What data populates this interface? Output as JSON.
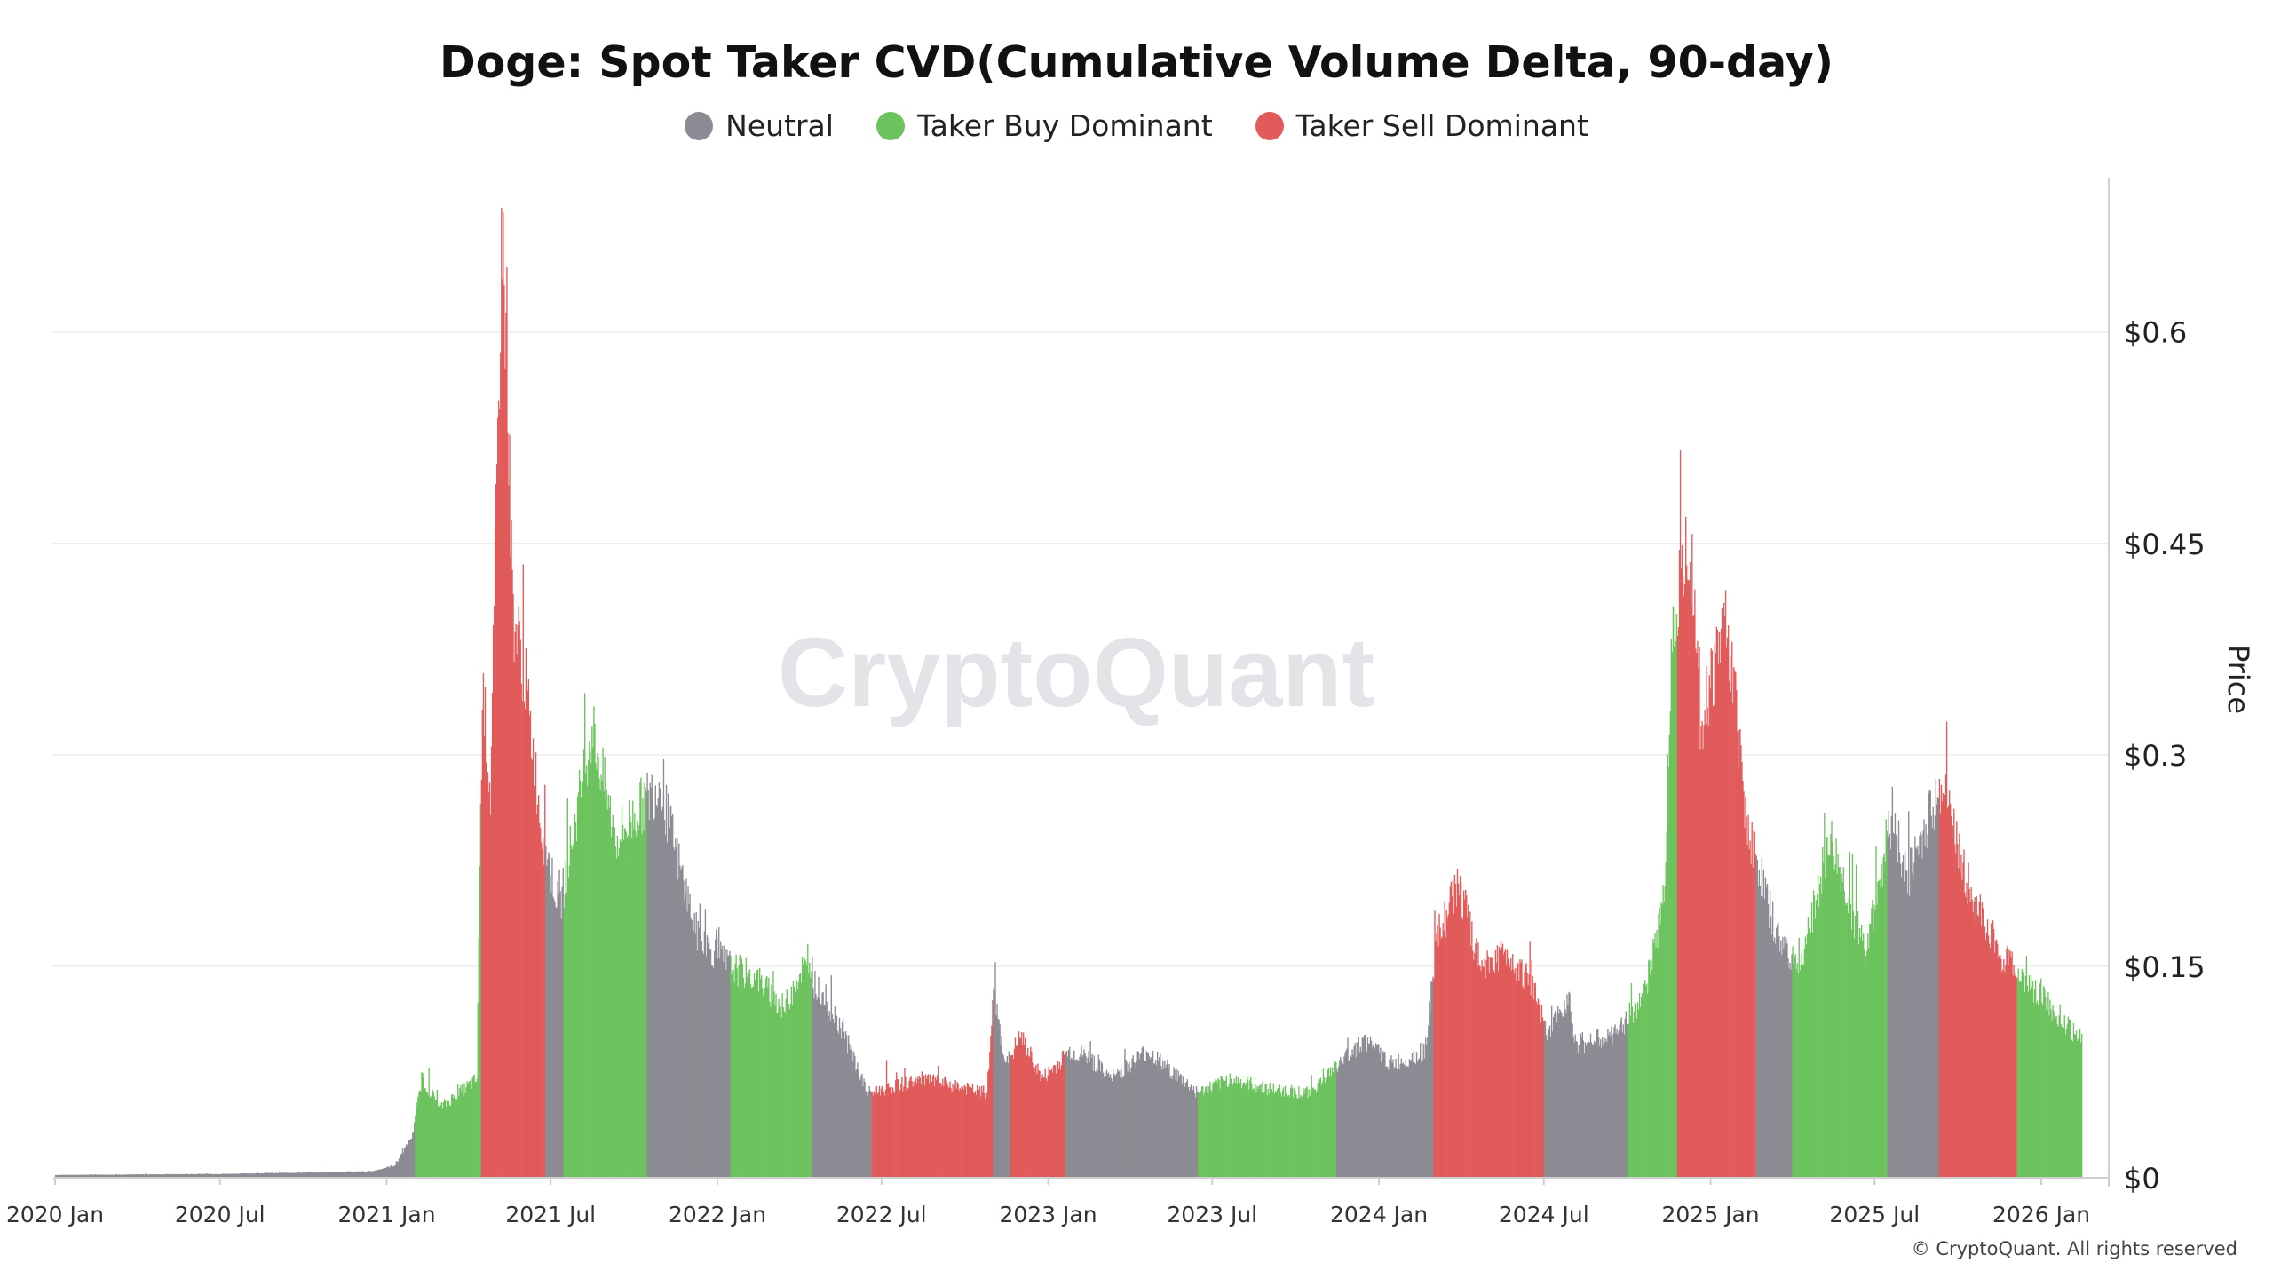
{
  "chart_data": {
    "type": "bar",
    "title": "Doge: Spot Taker CVD(Cumulative Volume Delta, 90-day)",
    "ylabel": "Price",
    "ylim": [
      0,
      0.7
    ],
    "yticks": [
      {
        "value": 0,
        "label": "$0"
      },
      {
        "value": 0.15,
        "label": "$0.15"
      },
      {
        "value": 0.3,
        "label": "$0.3"
      },
      {
        "value": 0.45,
        "label": "$0.45"
      },
      {
        "value": 0.6,
        "label": "$0.6"
      }
    ],
    "x_start": "2020-01-01",
    "x_end": "2026-02-15",
    "xticks": [
      {
        "date": "2020-01-01",
        "label": "2020 Jan"
      },
      {
        "date": "2020-07-01",
        "label": "2020 Jul"
      },
      {
        "date": "2021-01-01",
        "label": "2021 Jan"
      },
      {
        "date": "2021-07-01",
        "label": "2021 Jul"
      },
      {
        "date": "2022-01-01",
        "label": "2022 Jan"
      },
      {
        "date": "2022-07-01",
        "label": "2022 Jul"
      },
      {
        "date": "2023-01-01",
        "label": "2023 Jan"
      },
      {
        "date": "2023-07-01",
        "label": "2023 Jul"
      },
      {
        "date": "2024-01-01",
        "label": "2024 Jan"
      },
      {
        "date": "2024-07-01",
        "label": "2024 Jul"
      },
      {
        "date": "2025-01-01",
        "label": "2025 Jan"
      },
      {
        "date": "2025-07-01",
        "label": "2025 Jul"
      },
      {
        "date": "2026-01-01",
        "label": "2026 Jan"
      }
    ],
    "legend": [
      {
        "name": "Neutral",
        "color": "#8c8b93"
      },
      {
        "name": "Taker Buy Dominant",
        "color": "#6cc35e"
      },
      {
        "name": "Taker Sell Dominant",
        "color": "#e15b5b"
      }
    ],
    "legend_position": "top-center",
    "grid": true,
    "price_keypoints": [
      [
        "2020-01-01",
        0.002
      ],
      [
        "2020-07-01",
        0.0027
      ],
      [
        "2020-12-15",
        0.0045
      ],
      [
        "2021-01-10",
        0.009
      ],
      [
        "2021-01-29",
        0.03
      ],
      [
        "2021-02-08",
        0.07
      ],
      [
        "2021-03-01",
        0.05
      ],
      [
        "2021-04-10",
        0.07
      ],
      [
        "2021-04-16",
        0.35
      ],
      [
        "2021-04-25",
        0.27
      ],
      [
        "2021-05-08",
        0.68
      ],
      [
        "2021-05-20",
        0.4
      ],
      [
        "2021-06-01",
        0.36
      ],
      [
        "2021-06-20",
        0.25
      ],
      [
        "2021-07-10",
        0.19
      ],
      [
        "2021-08-15",
        0.32
      ],
      [
        "2021-09-10",
        0.24
      ],
      [
        "2021-10-28",
        0.28
      ],
      [
        "2021-11-20",
        0.22
      ],
      [
        "2021-12-10",
        0.17
      ],
      [
        "2022-01-15",
        0.15
      ],
      [
        "2022-02-15",
        0.14
      ],
      [
        "2022-03-15",
        0.12
      ],
      [
        "2022-04-05",
        0.15
      ],
      [
        "2022-05-15",
        0.11
      ],
      [
        "2022-06-15",
        0.06
      ],
      [
        "2022-08-15",
        0.07
      ],
      [
        "2022-10-25",
        0.06
      ],
      [
        "2022-11-01",
        0.13
      ],
      [
        "2022-11-15",
        0.08
      ],
      [
        "2022-12-01",
        0.1
      ],
      [
        "2022-12-25",
        0.07
      ],
      [
        "2023-01-25",
        0.09
      ],
      [
        "2023-02-15",
        0.085
      ],
      [
        "2023-03-10",
        0.07
      ],
      [
        "2023-04-20",
        0.09
      ],
      [
        "2023-06-15",
        0.06
      ],
      [
        "2023-07-20",
        0.07
      ],
      [
        "2023-09-01",
        0.063
      ],
      [
        "2023-10-15",
        0.06
      ],
      [
        "2023-12-15",
        0.098
      ],
      [
        "2024-01-15",
        0.08
      ],
      [
        "2024-02-20",
        0.09
      ],
      [
        "2024-03-05",
        0.17
      ],
      [
        "2024-03-28",
        0.21
      ],
      [
        "2024-04-20",
        0.15
      ],
      [
        "2024-05-20",
        0.16
      ],
      [
        "2024-06-15",
        0.14
      ],
      [
        "2024-07-05",
        0.1
      ],
      [
        "2024-07-28",
        0.13
      ],
      [
        "2024-08-05",
        0.095
      ],
      [
        "2024-09-15",
        0.1
      ],
      [
        "2024-10-20",
        0.13
      ],
      [
        "2024-11-10",
        0.2
      ],
      [
        "2024-11-20",
        0.4
      ],
      [
        "2024-12-08",
        0.46
      ],
      [
        "2024-12-20",
        0.32
      ],
      [
        "2025-01-18",
        0.4
      ],
      [
        "2025-02-10",
        0.25
      ],
      [
        "2025-03-15",
        0.17
      ],
      [
        "2025-04-10",
        0.15
      ],
      [
        "2025-05-12",
        0.24
      ],
      [
        "2025-06-20",
        0.16
      ],
      [
        "2025-07-20",
        0.26
      ],
      [
        "2025-08-05",
        0.21
      ],
      [
        "2025-09-12",
        0.28
      ],
      [
        "2025-10-15",
        0.2
      ],
      [
        "2025-11-15",
        0.16
      ],
      [
        "2025-12-15",
        0.14
      ],
      [
        "2026-02-10",
        0.1
      ]
    ],
    "regimes": [
      {
        "start": "2020-01-01",
        "end": "2021-02-01",
        "state": "neutral"
      },
      {
        "start": "2021-02-01",
        "end": "2021-04-15",
        "state": "buy"
      },
      {
        "start": "2021-04-15",
        "end": "2021-06-25",
        "state": "sell"
      },
      {
        "start": "2021-06-25",
        "end": "2021-07-15",
        "state": "neutral"
      },
      {
        "start": "2021-07-15",
        "end": "2021-10-15",
        "state": "buy"
      },
      {
        "start": "2021-10-15",
        "end": "2022-01-15",
        "state": "neutral"
      },
      {
        "start": "2022-01-15",
        "end": "2022-04-15",
        "state": "buy"
      },
      {
        "start": "2022-04-15",
        "end": "2022-06-20",
        "state": "neutral"
      },
      {
        "start": "2022-06-20",
        "end": "2022-11-01",
        "state": "sell"
      },
      {
        "start": "2022-11-01",
        "end": "2022-11-20",
        "state": "neutral"
      },
      {
        "start": "2022-11-20",
        "end": "2023-01-20",
        "state": "sell"
      },
      {
        "start": "2023-01-20",
        "end": "2023-06-15",
        "state": "neutral"
      },
      {
        "start": "2023-06-15",
        "end": "2023-11-15",
        "state": "buy"
      },
      {
        "start": "2023-11-15",
        "end": "2024-03-01",
        "state": "neutral"
      },
      {
        "start": "2024-03-01",
        "end": "2024-07-01",
        "state": "sell"
      },
      {
        "start": "2024-07-01",
        "end": "2024-10-01",
        "state": "neutral"
      },
      {
        "start": "2024-10-01",
        "end": "2024-11-25",
        "state": "buy"
      },
      {
        "start": "2024-11-25",
        "end": "2025-02-20",
        "state": "sell"
      },
      {
        "start": "2025-02-20",
        "end": "2025-04-01",
        "state": "neutral"
      },
      {
        "start": "2025-04-01",
        "end": "2025-07-15",
        "state": "buy"
      },
      {
        "start": "2025-07-15",
        "end": "2025-09-10",
        "state": "neutral"
      },
      {
        "start": "2025-09-10",
        "end": "2025-12-05",
        "state": "sell"
      },
      {
        "start": "2025-12-05",
        "end": "2026-02-15",
        "state": "buy"
      }
    ]
  },
  "watermark": "CryptoQuant",
  "copyright": "© CryptoQuant. All rights reserved"
}
